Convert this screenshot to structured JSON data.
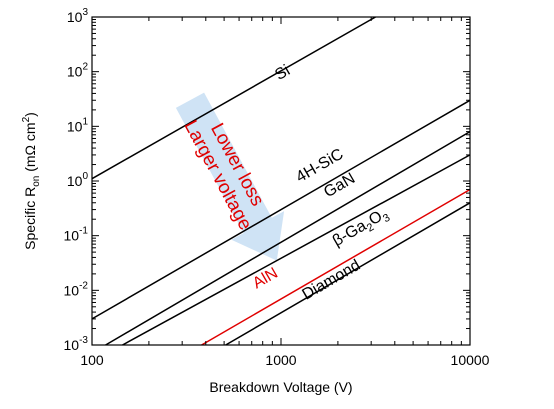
{
  "chart_data": {
    "type": "line",
    "xlabel": "Breakdown Voltage (V)",
    "ylabel": {
      "prefix": "Specific R",
      "sub": "on",
      "suffix": " (mΩ cm",
      "sup": "2",
      "end": ")"
    },
    "x_scale": "log",
    "y_scale": "log",
    "xlim": [
      100,
      10000
    ],
    "ylim": [
      0.001,
      1000
    ],
    "x_ticks": [
      {
        "value": 100,
        "label": "100"
      },
      {
        "value": 1000,
        "label": "1000"
      },
      {
        "value": 10000,
        "label": "10000"
      }
    ],
    "y_ticks": [
      {
        "value": 0.001,
        "base": "10",
        "exp": "-3"
      },
      {
        "value": 0.01,
        "base": "10",
        "exp": "-2"
      },
      {
        "value": 0.1,
        "base": "10",
        "exp": "-1"
      },
      {
        "value": 1,
        "base": "10",
        "exp": "0"
      },
      {
        "value": 10,
        "base": "10",
        "exp": "1"
      },
      {
        "value": 100,
        "base": "10",
        "exp": "2"
      },
      {
        "value": 1000,
        "base": "10",
        "exp": "3"
      }
    ],
    "grid": false,
    "series": [
      {
        "name": "Si",
        "color": "#000000",
        "x": [
          100,
          3162
        ],
        "y": [
          1.1,
          1000
        ]
      },
      {
        "name": "4H-SiC",
        "color": "#000000",
        "x": [
          100,
          10000
        ],
        "y": [
          0.003,
          30
        ]
      },
      {
        "name": "GaN",
        "color": "#000000",
        "x": [
          118,
          10000
        ],
        "y": [
          0.001,
          8
        ]
      },
      {
        "name": "β-Ga2O3",
        "color": "#000000",
        "x": [
          145,
          10000
        ],
        "y": [
          0.001,
          3
        ]
      },
      {
        "name": "AlN",
        "color": "#e00000",
        "x": [
          380,
          10000
        ],
        "y": [
          0.001,
          0.7
        ]
      },
      {
        "name": "Diamond",
        "color": "#000000",
        "x": [
          510,
          10000
        ],
        "y": [
          0.001,
          0.4
        ]
      }
    ],
    "series_labels": [
      {
        "text": "Si",
        "x": 1050,
        "y": 80,
        "color": "#000000"
      },
      {
        "text": "4H-SiC",
        "x": 1650,
        "y": 1.6,
        "color": "#000000"
      },
      {
        "text": "GaN",
        "x": 2100,
        "y": 0.7,
        "color": "#000000"
      },
      {
        "text": "AlN",
        "x": 850,
        "y": 0.014,
        "color": "#e00000"
      },
      {
        "text": "Diamond",
        "x": 1900,
        "y": 0.013,
        "color": "#000000"
      }
    ],
    "ga2o3_label": {
      "prefix": "β-Ga",
      "sub1": "2",
      "mid": "O",
      "sub2": "3",
      "color": "#000000",
      "x": 2700,
      "y": 0.12
    },
    "annotation": {
      "lines": [
        "Lower loss",
        "Larger voltage"
      ],
      "color": "#e00000",
      "arrow_color": "#cfe3f5",
      "arrow_from": {
        "x": 330,
        "y": 30
      },
      "arrow_to": {
        "x": 950,
        "y": 0.035
      }
    }
  }
}
